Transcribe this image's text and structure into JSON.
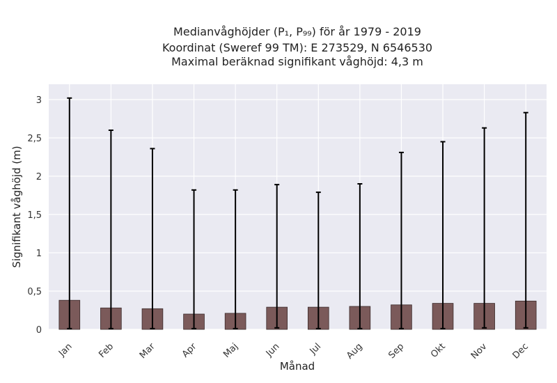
{
  "chart_data": {
    "type": "bar",
    "title_lines": [
      "Medianvåghöjder (P₁, P₉₉) för år 1979 - 2019",
      "Koordinat (Sweref 99 TM): E 273529, N 6546530",
      "Maximal beräknad signifikant våghöjd: 4,3 m"
    ],
    "xlabel": "Månad",
    "ylabel": "Signifikant våghöjd (m)",
    "categories": [
      "Jan",
      "Feb",
      "Mar",
      "Apr",
      "Maj",
      "Jun",
      "Jul",
      "Aug",
      "Sep",
      "Okt",
      "Nov",
      "Dec"
    ],
    "values": [
      0.38,
      0.28,
      0.27,
      0.2,
      0.21,
      0.29,
      0.29,
      0.3,
      0.32,
      0.34,
      0.34,
      0.37
    ],
    "error_low": [
      0.01,
      0.01,
      0.01,
      0.01,
      0.01,
      0.02,
      0.01,
      0.01,
      0.01,
      0.01,
      0.02,
      0.02
    ],
    "error_high": [
      3.02,
      2.6,
      2.36,
      1.82,
      1.82,
      1.89,
      1.79,
      1.9,
      2.31,
      2.45,
      2.63,
      2.83
    ],
    "ylim": [
      0,
      3.2
    ],
    "yticks": [
      0,
      0.5,
      1,
      1.5,
      2,
      2.5,
      3
    ],
    "ytick_labels": [
      "0",
      "0,5",
      "1",
      "1,5",
      "2",
      "2,5",
      "3"
    ],
    "grid": true,
    "colors": {
      "bar": "#7b5a5a",
      "bar_edge": "#3a2a2a",
      "errorbar": "#000000",
      "plot_background": "#eaeaf2",
      "grid": "#ffffff"
    }
  }
}
